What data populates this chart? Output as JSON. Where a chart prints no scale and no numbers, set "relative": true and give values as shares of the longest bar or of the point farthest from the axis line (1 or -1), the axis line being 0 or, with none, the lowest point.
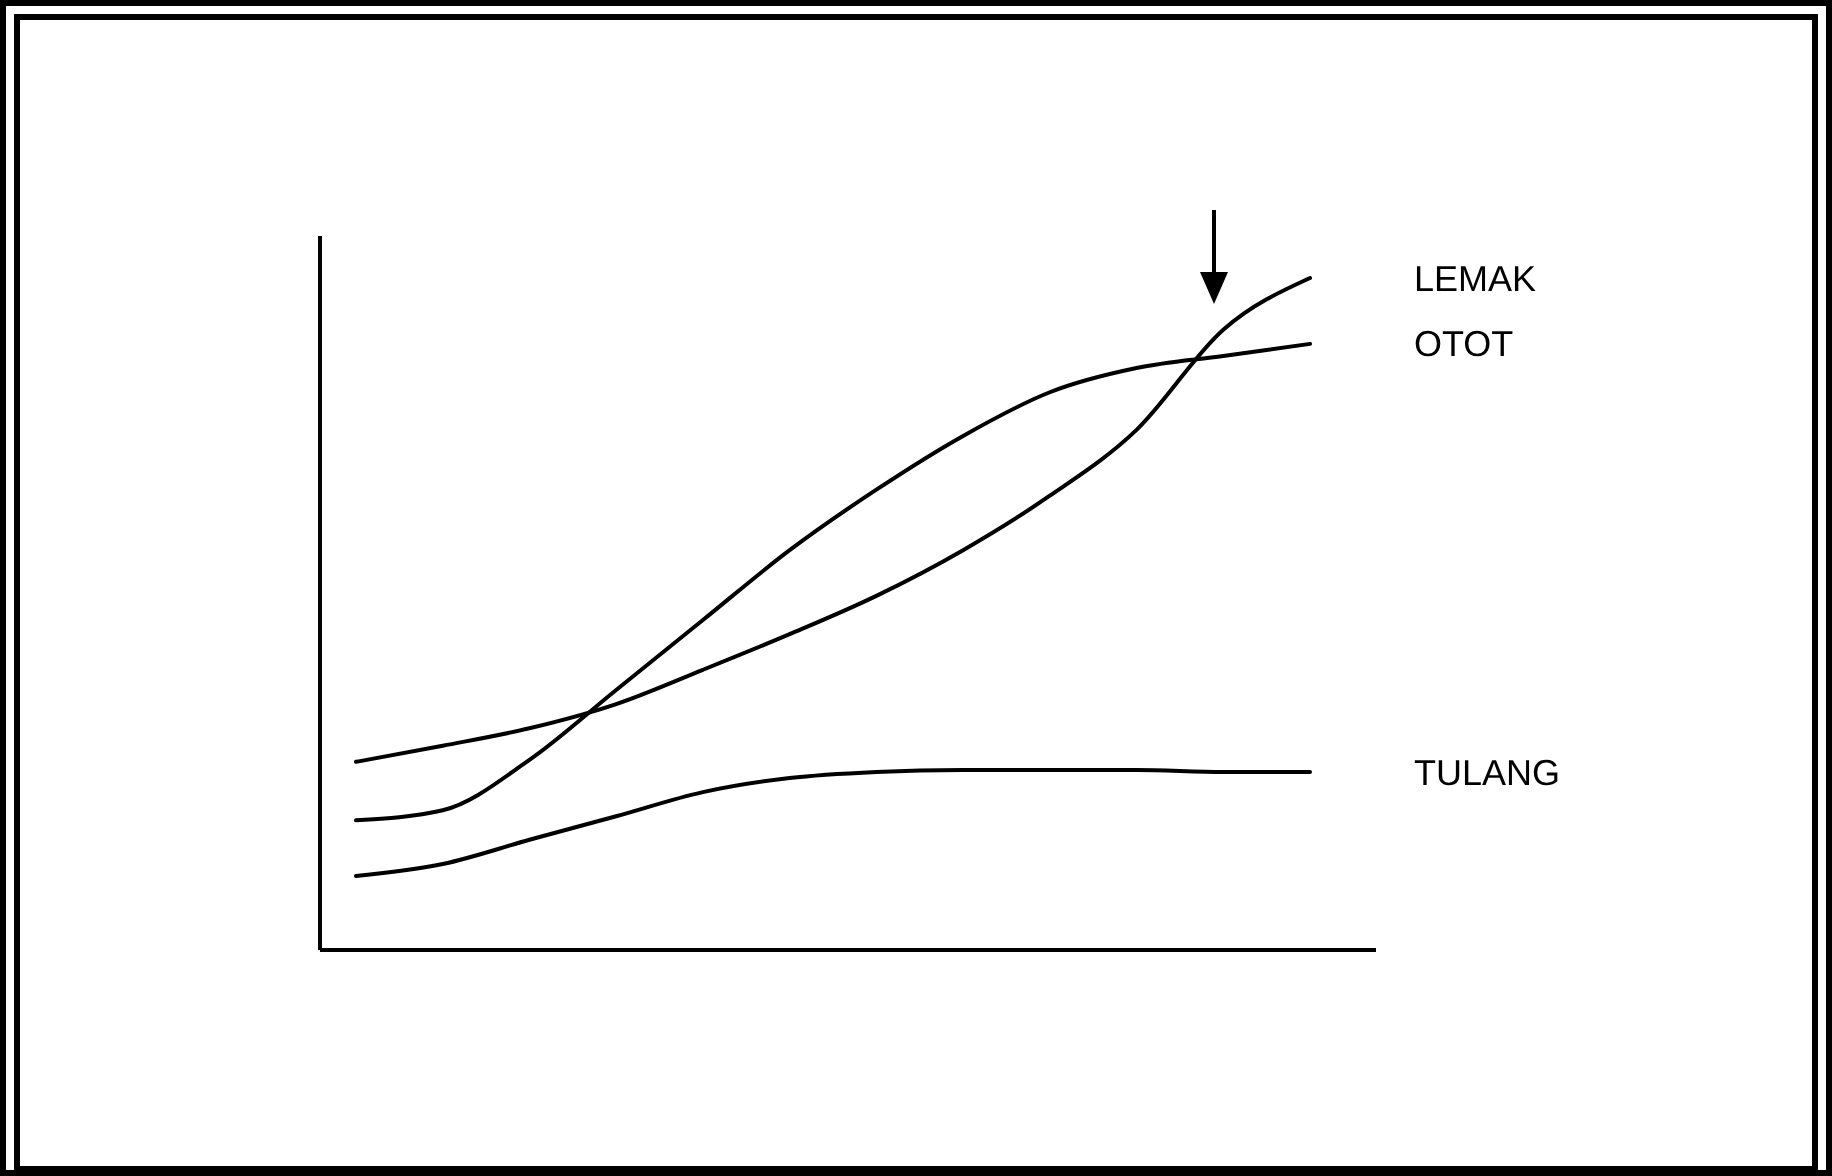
{
  "chart_data": {
    "type": "line",
    "relative": true,
    "categories": [
      null,
      null,
      null,
      null,
      null,
      null,
      null,
      null,
      null,
      null,
      null,
      null
    ],
    "series": [
      {
        "name": "LEMAK",
        "color": "#000000",
        "values": [
          0.28,
          0.304,
          0.33,
          0.366,
          0.417,
          0.47,
          0.527,
          0.595,
          0.676,
          0.774,
          0.923,
          1
        ]
      },
      {
        "name": "OTOT",
        "color": "#000000",
        "values": [
          0.193,
          0.208,
          0.283,
          0.387,
          0.491,
          0.595,
          0.685,
          0.765,
          0.83,
          0.866,
          0.884,
          0.902
        ]
      },
      {
        "name": "TULANG",
        "color": "#000000",
        "values": [
          0.11,
          0.128,
          0.164,
          0.199,
          0.235,
          0.256,
          0.265,
          0.268,
          0.268,
          0.268,
          0.265,
          0.265
        ]
      }
    ]
  }
}
